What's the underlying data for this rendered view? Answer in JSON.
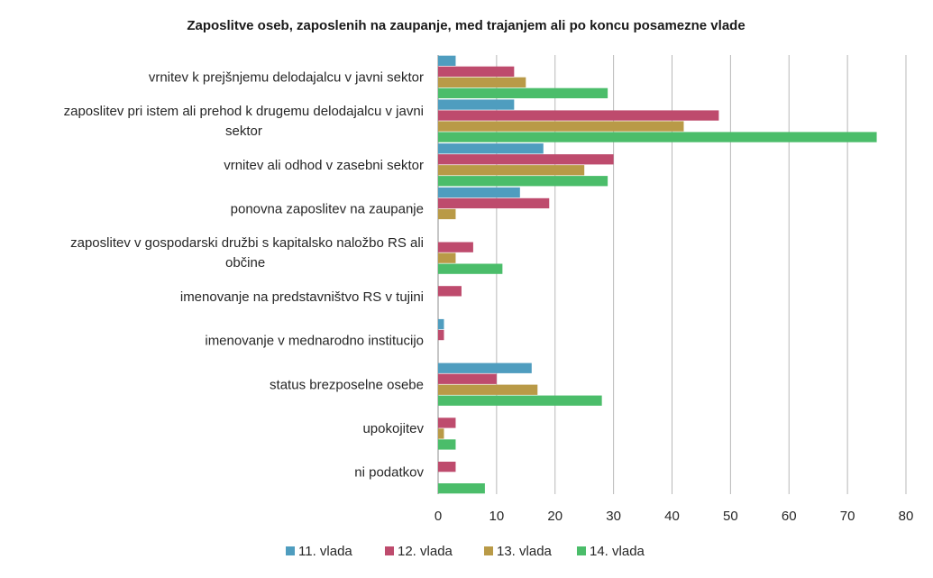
{
  "chart_data": {
    "type": "bar",
    "orientation": "horizontal",
    "title": "Zaposlitve oseb, zaposlenih na zaupanje, med trajanjem ali po koncu posamezne vlade",
    "categories": [
      [
        "vrnitev k prejšnjemu delodajalcu v javni sektor"
      ],
      [
        "zaposlitev pri istem ali prehod k drugemu delodajalcu v javni",
        "sektor"
      ],
      [
        "vrnitev ali odhod v zasebni sektor"
      ],
      [
        "ponovna zaposlitev na zaupanje"
      ],
      [
        "zaposlitev v gospodarski družbi s kapitalsko naložbo RS ali",
        "občine"
      ],
      [
        "imenovanje na predstavništvo RS v tujini"
      ],
      [
        "imenovanje v mednarodno institucijo"
      ],
      [
        "status brezposelne osebe"
      ],
      [
        "upokojitev"
      ],
      [
        "ni podatkov"
      ]
    ],
    "series": [
      {
        "name": "11. vlada",
        "color": "#4f9dbf",
        "values": [
          3,
          13,
          18,
          14,
          0,
          0,
          1,
          16,
          0,
          0
        ]
      },
      {
        "name": "12. vlada",
        "color": "#be4b6d",
        "values": [
          13,
          48,
          30,
          19,
          6,
          4,
          1,
          10,
          3,
          3
        ]
      },
      {
        "name": "13. vlada",
        "color": "#b99a47",
        "values": [
          15,
          42,
          25,
          3,
          3,
          0,
          0,
          17,
          1,
          0
        ]
      },
      {
        "name": "14. vlada",
        "color": "#4bbd6a",
        "values": [
          29,
          75,
          29,
          0,
          11,
          0,
          0,
          28,
          3,
          8
        ]
      }
    ],
    "xlim": [
      0,
      80
    ],
    "xticks": [
      0,
      10,
      20,
      30,
      40,
      50,
      60,
      70,
      80
    ],
    "grid": true,
    "legend": "bottom"
  }
}
